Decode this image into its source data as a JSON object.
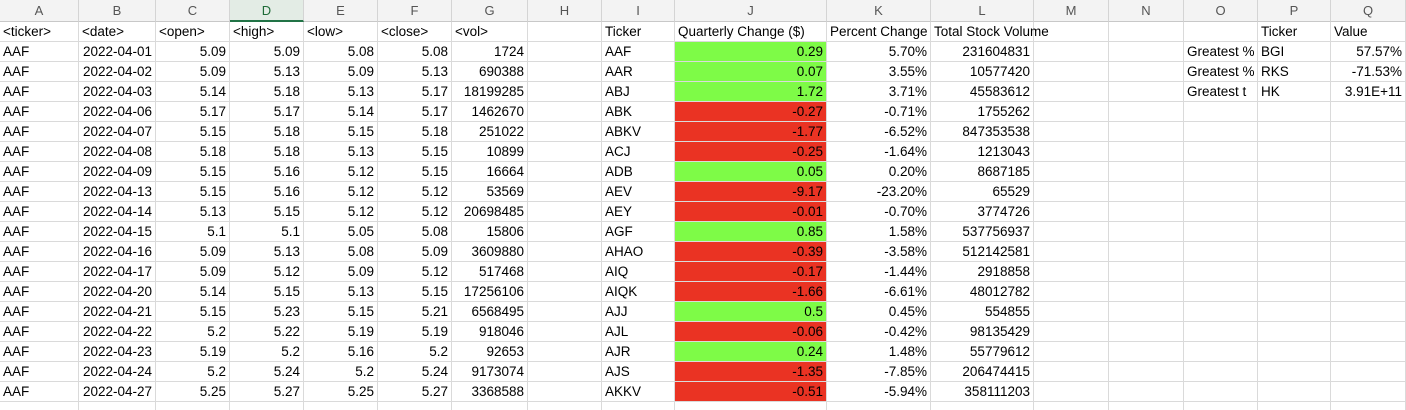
{
  "columns": [
    "A",
    "B",
    "C",
    "D",
    "E",
    "F",
    "G",
    "H",
    "I",
    "J",
    "K",
    "L",
    "M",
    "N",
    "O",
    "P",
    "Q"
  ],
  "selected_column": "D",
  "raw": {
    "headers": [
      "<ticker>",
      "<date>",
      "<open>",
      "<high>",
      "<low>",
      "<close>",
      "<vol>"
    ],
    "rows": [
      [
        "AAF",
        "2022-04-01",
        "5.09",
        "5.09",
        "5.08",
        "5.08",
        "1724"
      ],
      [
        "AAF",
        "2022-04-02",
        "5.09",
        "5.13",
        "5.09",
        "5.13",
        "690388"
      ],
      [
        "AAF",
        "2022-04-03",
        "5.14",
        "5.18",
        "5.13",
        "5.17",
        "18199285"
      ],
      [
        "AAF",
        "2022-04-06",
        "5.17",
        "5.17",
        "5.14",
        "5.17",
        "1462670"
      ],
      [
        "AAF",
        "2022-04-07",
        "5.15",
        "5.18",
        "5.15",
        "5.18",
        "251022"
      ],
      [
        "AAF",
        "2022-04-08",
        "5.18",
        "5.18",
        "5.13",
        "5.15",
        "10899"
      ],
      [
        "AAF",
        "2022-04-09",
        "5.15",
        "5.16",
        "5.12",
        "5.15",
        "16664"
      ],
      [
        "AAF",
        "2022-04-13",
        "5.15",
        "5.16",
        "5.12",
        "5.12",
        "53569"
      ],
      [
        "AAF",
        "2022-04-14",
        "5.13",
        "5.15",
        "5.12",
        "5.12",
        "20698485"
      ],
      [
        "AAF",
        "2022-04-15",
        "5.1",
        "5.1",
        "5.05",
        "5.08",
        "15806"
      ],
      [
        "AAF",
        "2022-04-16",
        "5.09",
        "5.13",
        "5.08",
        "5.09",
        "3609880"
      ],
      [
        "AAF",
        "2022-04-17",
        "5.09",
        "5.12",
        "5.09",
        "5.12",
        "517468"
      ],
      [
        "AAF",
        "2022-04-20",
        "5.14",
        "5.15",
        "5.13",
        "5.15",
        "17256106"
      ],
      [
        "AAF",
        "2022-04-21",
        "5.15",
        "5.23",
        "5.15",
        "5.21",
        "6568495"
      ],
      [
        "AAF",
        "2022-04-22",
        "5.2",
        "5.22",
        "5.19",
        "5.19",
        "918046"
      ],
      [
        "AAF",
        "2022-04-23",
        "5.19",
        "5.2",
        "5.16",
        "5.2",
        "92653"
      ],
      [
        "AAF",
        "2022-04-24",
        "5.2",
        "5.24",
        "5.2",
        "5.24",
        "9173074"
      ],
      [
        "AAF",
        "2022-04-27",
        "5.25",
        "5.27",
        "5.25",
        "5.27",
        "3368588"
      ]
    ]
  },
  "summary": {
    "headers": [
      "Ticker",
      "Quarterly Change ($)",
      "Percent Change",
      "Total Stock Volume"
    ],
    "rows": [
      {
        "ticker": "AAF",
        "change": "0.29",
        "percent": "5.70%",
        "volume": "231604831",
        "status": "positive"
      },
      {
        "ticker": "AAR",
        "change": "0.07",
        "percent": "3.55%",
        "volume": "10577420",
        "status": "positive"
      },
      {
        "ticker": "ABJ",
        "change": "1.72",
        "percent": "3.71%",
        "volume": "45583612",
        "status": "positive"
      },
      {
        "ticker": "ABK",
        "change": "-0.27",
        "percent": "-0.71%",
        "volume": "1755262",
        "status": "negative"
      },
      {
        "ticker": "ABKV",
        "change": "-1.77",
        "percent": "-6.52%",
        "volume": "847353538",
        "status": "negative"
      },
      {
        "ticker": "ACJ",
        "change": "-0.25",
        "percent": "-1.64%",
        "volume": "1213043",
        "status": "negative"
      },
      {
        "ticker": "ADB",
        "change": "0.05",
        "percent": "0.20%",
        "volume": "8687185",
        "status": "positive"
      },
      {
        "ticker": "AEV",
        "change": "-9.17",
        "percent": "-23.20%",
        "volume": "65529",
        "status": "negative"
      },
      {
        "ticker": "AEY",
        "change": "-0.01",
        "percent": "-0.70%",
        "volume": "3774726",
        "status": "negative"
      },
      {
        "ticker": "AGF",
        "change": "0.85",
        "percent": "1.58%",
        "volume": "537756937",
        "status": "positive"
      },
      {
        "ticker": "AHAO",
        "change": "-0.39",
        "percent": "-3.58%",
        "volume": "512142581",
        "status": "negative"
      },
      {
        "ticker": "AIQ",
        "change": "-0.17",
        "percent": "-1.44%",
        "volume": "2918858",
        "status": "negative"
      },
      {
        "ticker": "AIQK",
        "change": "-1.66",
        "percent": "-6.61%",
        "volume": "48012782",
        "status": "negative"
      },
      {
        "ticker": "AJJ",
        "change": "0.5",
        "percent": "0.45%",
        "volume": "554855",
        "status": "positive"
      },
      {
        "ticker": "AJL",
        "change": "-0.06",
        "percent": "-0.42%",
        "volume": "98135429",
        "status": "negative"
      },
      {
        "ticker": "AJR",
        "change": "0.24",
        "percent": "1.48%",
        "volume": "55779612",
        "status": "positive"
      },
      {
        "ticker": "AJS",
        "change": "-1.35",
        "percent": "-7.85%",
        "volume": "206474415",
        "status": "negative"
      },
      {
        "ticker": "AKKV",
        "change": "-0.51",
        "percent": "-5.94%",
        "volume": "358111203",
        "status": "negative"
      }
    ]
  },
  "greatest": {
    "headers": [
      "Ticker",
      "Value"
    ],
    "rows": [
      {
        "label": "Greatest %",
        "ticker": "BGI",
        "value": "57.57%"
      },
      {
        "label": "Greatest %",
        "ticker": "RKS",
        "value": "-71.53%"
      },
      {
        "label": "Greatest t",
        "ticker": "HK",
        "value": "3.91E+11"
      }
    ]
  },
  "colors": {
    "positive": "#7efb47",
    "negative": "#ea3323",
    "selected_header": "#217346"
  }
}
